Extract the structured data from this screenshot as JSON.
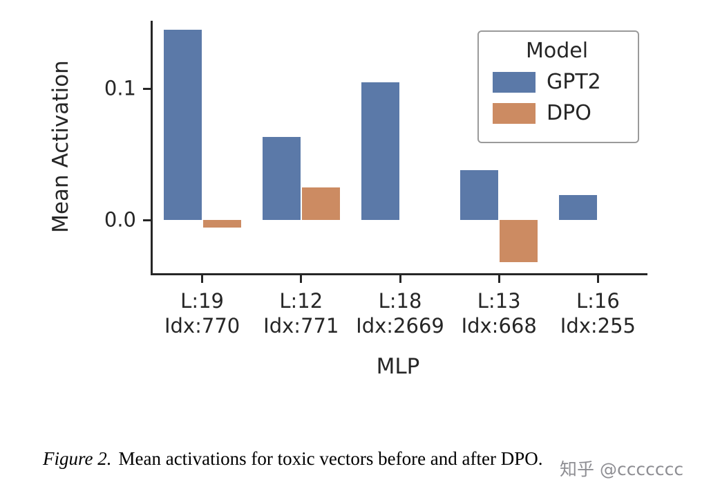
{
  "chart_data": {
    "type": "bar",
    "title": "",
    "xlabel": "MLP",
    "ylabel": "Mean Activation",
    "categories": [
      {
        "top": "L:19",
        "bottom": "Idx:770"
      },
      {
        "top": "L:12",
        "bottom": "Idx:771"
      },
      {
        "top": "L:18",
        "bottom": "Idx:2669"
      },
      {
        "top": "L:13",
        "bottom": "Idx:668"
      },
      {
        "top": "L:16",
        "bottom": "Idx:255"
      }
    ],
    "series": [
      {
        "name": "GPT2",
        "color": "#5b79a8",
        "values": [
          0.145,
          0.063,
          0.105,
          0.038,
          0.019
        ]
      },
      {
        "name": "DPO",
        "color": "#cc8b62",
        "values": [
          -0.006,
          0.025,
          0,
          -0.032,
          0
        ]
      }
    ],
    "ylim": [
      -0.0405,
      0.1516
    ],
    "yticks": [
      0.0,
      0.1
    ],
    "ytick_labels": [
      "0.0",
      "0.1"
    ],
    "legend_title": "Model",
    "legend_position": "upper right",
    "grid": false
  },
  "caption": {
    "label": "Figure 2.",
    "text": "Mean activations for toxic vectors before and after DPO."
  },
  "watermark": "知乎 @ccccccc"
}
